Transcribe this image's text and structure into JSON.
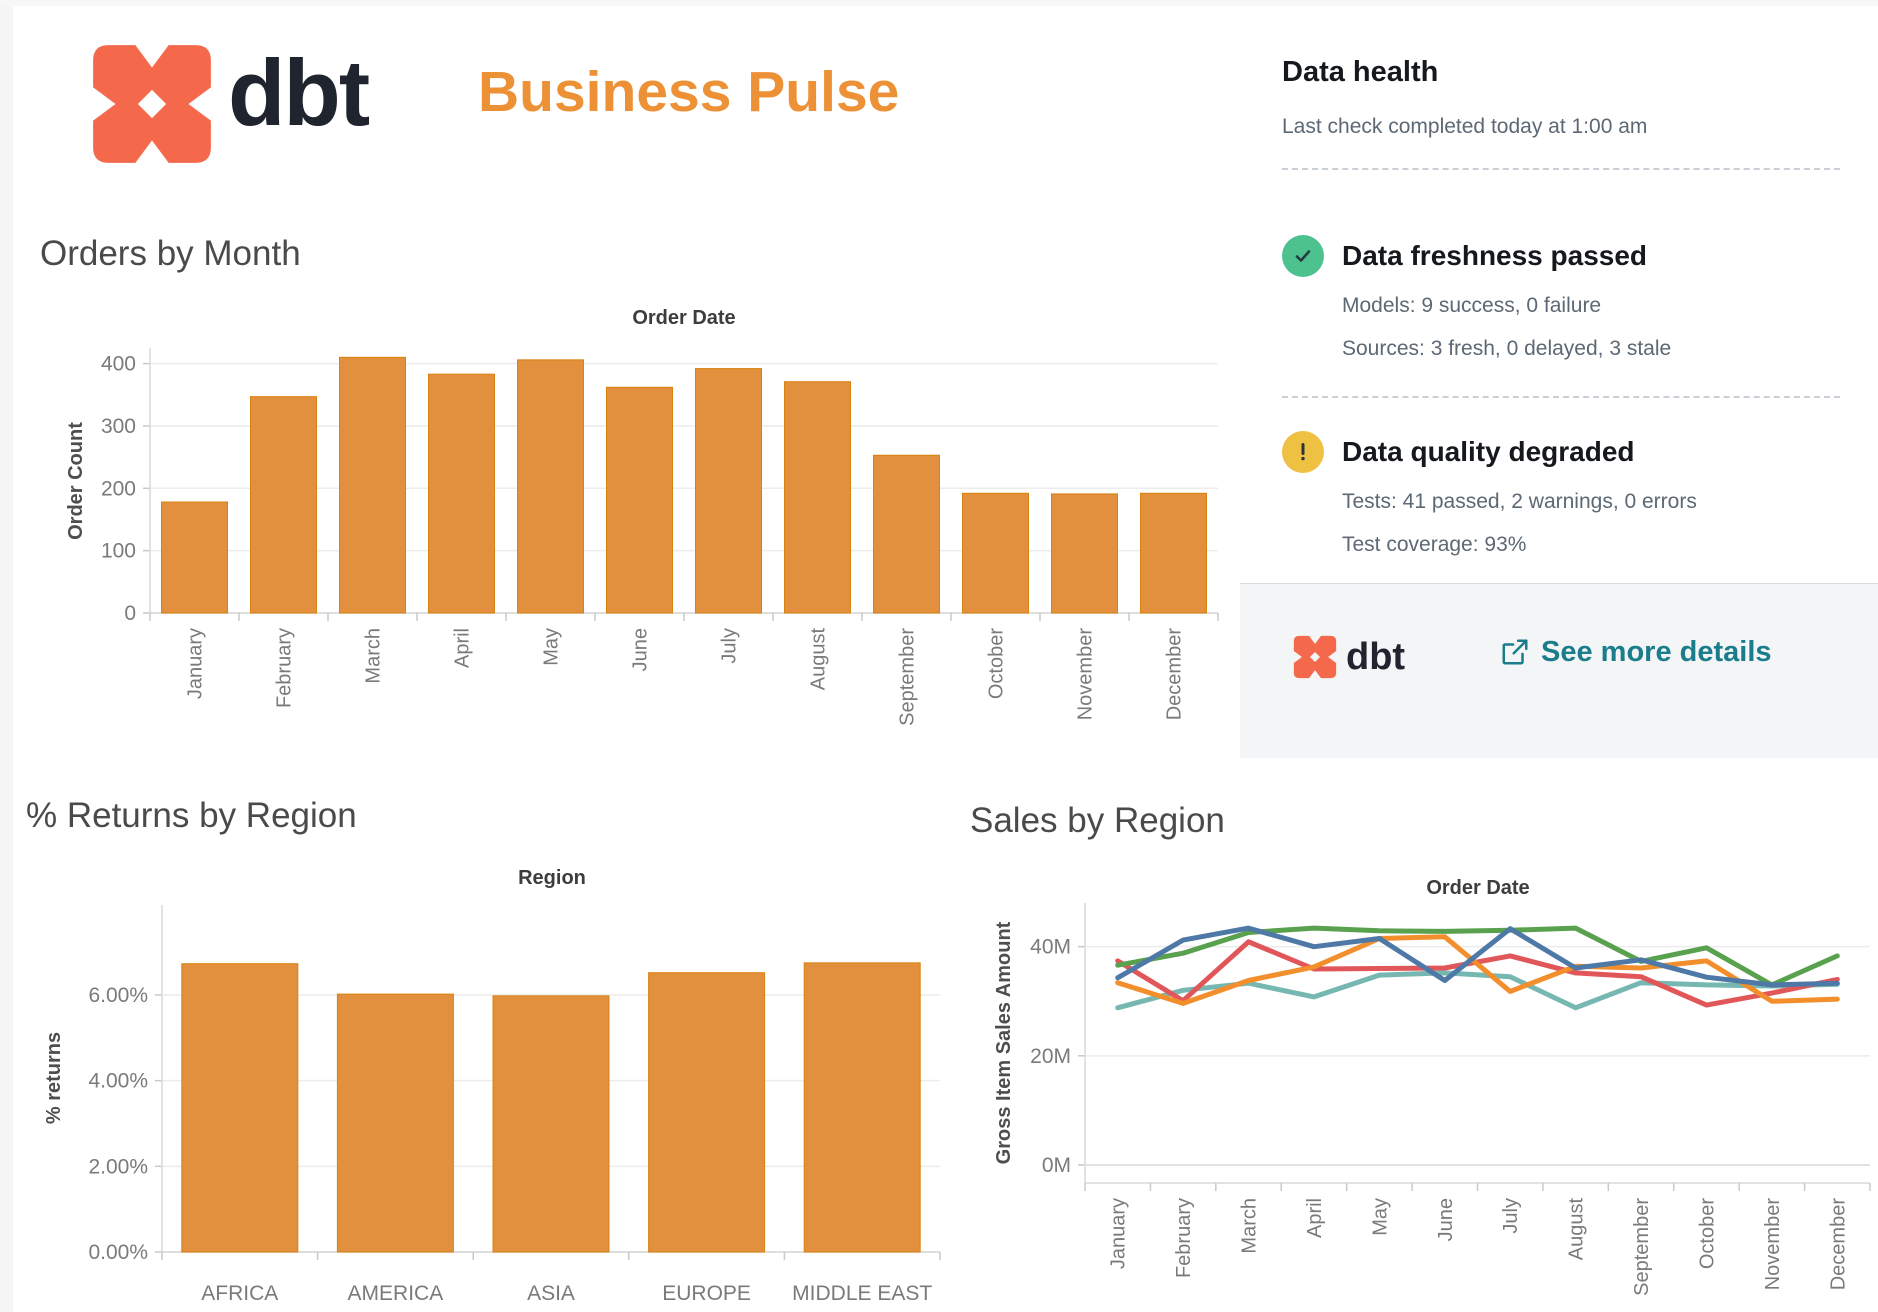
{
  "header": {
    "brand": "dbt",
    "title": "Business Pulse",
    "brand_color": "#f4694c",
    "title_color": "#ed9137"
  },
  "data_health": {
    "title": "Data health",
    "last_check": "Last check completed today at 1:00 am",
    "freshness": {
      "icon": "check-circle",
      "icon_color": "#4ec28e",
      "status": "Data freshness passed",
      "models": "Models: 9 success, 0 failure",
      "sources": "Sources: 3 fresh, 0 delayed, 3 stale"
    },
    "quality": {
      "icon": "warning-circle",
      "icon_color": "#efc143",
      "status": "Data quality degraded",
      "tests": "Tests: 41 passed, 2 warnings, 0 errors",
      "coverage": "Test coverage: 93%"
    },
    "footer": {
      "brand": "dbt",
      "link": "See more details",
      "link_icon": "external-link",
      "link_color": "#1b7d8c"
    }
  },
  "chart_data": [
    {
      "type": "bar",
      "title": "Orders by Month",
      "field_label": "Order Date",
      "ylabel": "Order Count",
      "categories": [
        "January",
        "February",
        "March",
        "April",
        "May",
        "June",
        "July",
        "August",
        "September",
        "October",
        "November",
        "December"
      ],
      "values": [
        178,
        347,
        410,
        383,
        406,
        362,
        392,
        371,
        253,
        192,
        191,
        192
      ],
      "yticks": [
        0,
        100,
        200,
        300,
        400
      ],
      "ylim": [
        0,
        425
      ],
      "bar_color": "#e2903e",
      "bar_border_color": "#d9820f",
      "grid": true,
      "x_labels_rotated": true
    },
    {
      "type": "bar",
      "title": "% Returns by Region",
      "field_label": "Region",
      "ylabel": "% returns",
      "categories": [
        "AFRICA",
        "AMERICA",
        "ASIA",
        "EUROPE",
        "MIDDLE EAST"
      ],
      "values": [
        6.73,
        6.02,
        5.98,
        6.52,
        6.75
      ],
      "yticks": [
        0,
        2,
        4,
        6
      ],
      "ytick_labels": [
        "0.00%",
        "2.00%",
        "4.00%",
        "6.00%"
      ],
      "ylim": [
        0,
        8.1
      ],
      "bar_color": "#e2903e",
      "bar_border_color": "#d9820f",
      "grid": true,
      "x_labels_rotated": false
    },
    {
      "type": "line",
      "title": "Sales by Region",
      "field_label": "Order Date",
      "ylabel": "Gross Item Sales Amount",
      "categories": [
        "January",
        "February",
        "March",
        "April",
        "May",
        "June",
        "July",
        "August",
        "September",
        "October",
        "November",
        "December"
      ],
      "series": [
        {
          "name": "teal",
          "color": "#76b7b2",
          "values": [
            28.8,
            32.0,
            33.3,
            30.8,
            34.8,
            35.2,
            34.5,
            28.8,
            33.4,
            33.0,
            32.8,
            33.1
          ]
        },
        {
          "name": "red",
          "color": "#e15759",
          "values": [
            37.4,
            30.1,
            40.9,
            35.9,
            36.0,
            36.1,
            38.3,
            35.2,
            34.5,
            29.3,
            31.5,
            34.0
          ]
        },
        {
          "name": "orange",
          "color": "#f28e2b",
          "values": [
            33.4,
            29.6,
            33.8,
            36.3,
            41.5,
            41.8,
            31.8,
            36.4,
            36.1,
            37.4,
            30.0,
            30.4
          ]
        },
        {
          "name": "green",
          "color": "#59a14f",
          "values": [
            36.6,
            38.8,
            42.6,
            43.4,
            42.9,
            42.8,
            43.0,
            43.4,
            37.3,
            39.8,
            33.0,
            38.3
          ]
        },
        {
          "name": "blue",
          "color": "#4e79a7",
          "values": [
            34.3,
            41.2,
            43.4,
            40.0,
            41.5,
            33.8,
            43.3,
            36.1,
            37.6,
            34.4,
            33.0,
            33.3
          ]
        }
      ],
      "yticks": [
        0,
        20,
        40
      ],
      "ytick_labels": [
        "0M",
        "20M",
        "40M"
      ],
      "ylim": [
        0,
        48
      ],
      "grid": true,
      "legend": "none",
      "x_labels_rotated": true
    }
  ]
}
